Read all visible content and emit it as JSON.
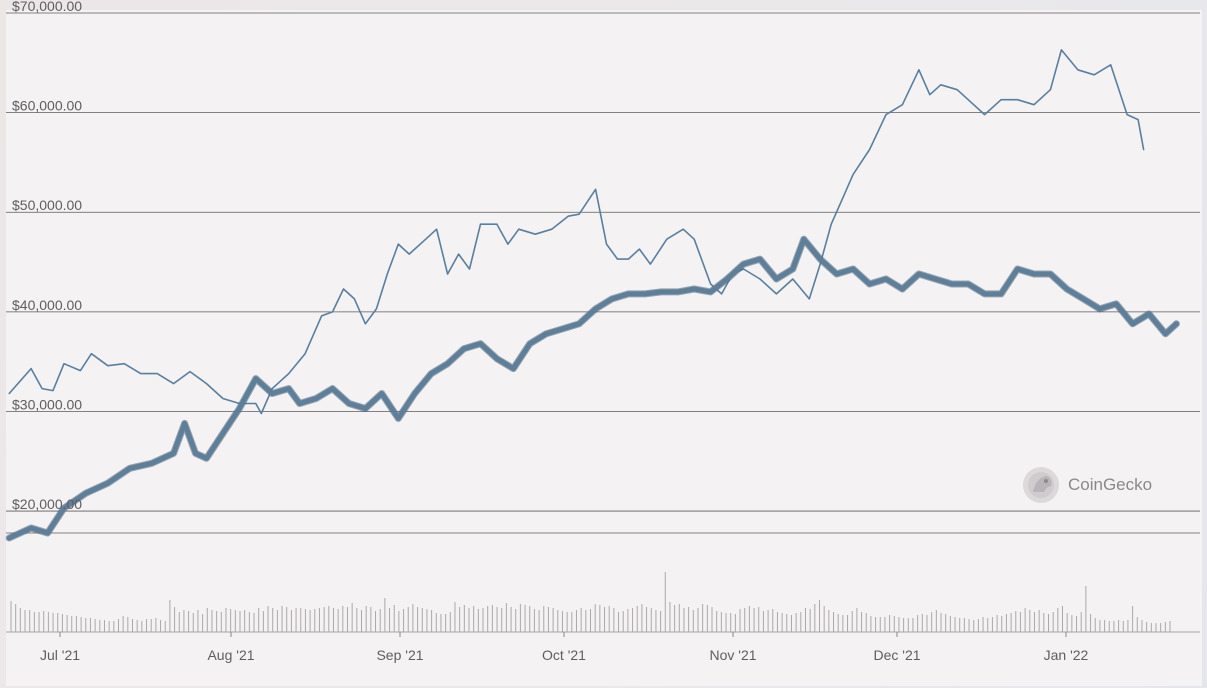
{
  "chart_data": {
    "type": "line",
    "title": "",
    "xlabel": "",
    "ylabel": "",
    "x_ticks": [
      "Jul '21",
      "Aug '21",
      "Sep '21",
      "Oct '21",
      "Nov '21",
      "Dec '21",
      "Jan '22"
    ],
    "y_ticks": [
      "$20,000.00",
      "$30,000.00",
      "$40,000.00",
      "$50,000.00",
      "$60,000.00",
      "$70,000.00"
    ],
    "ylim": [
      13000,
      72000
    ],
    "xlim": [
      "2021-06-21",
      "2022-01-28"
    ],
    "grid": true,
    "watermark": "CoinGecko",
    "series": [
      {
        "style": "thin",
        "color": "#5a7f9e",
        "points": [
          [
            "2021-06-21",
            32000
          ],
          [
            "2021-06-25",
            34500
          ],
          [
            "2021-06-27",
            32500
          ],
          [
            "2021-06-29",
            32300
          ],
          [
            "2021-07-01",
            35000
          ],
          [
            "2021-07-04",
            34300
          ],
          [
            "2021-07-06",
            36000
          ],
          [
            "2021-07-09",
            34800
          ],
          [
            "2021-07-12",
            35000
          ],
          [
            "2021-07-15",
            34000
          ],
          [
            "2021-07-18",
            34000
          ],
          [
            "2021-07-21",
            33000
          ],
          [
            "2021-07-24",
            34200
          ],
          [
            "2021-07-27",
            33000
          ],
          [
            "2021-07-30",
            31500
          ],
          [
            "2021-08-02",
            31000
          ],
          [
            "2021-08-05",
            31000
          ],
          [
            "2021-08-06",
            30000
          ],
          [
            "2021-08-08",
            32500
          ],
          [
            "2021-08-11",
            34000
          ],
          [
            "2021-08-14",
            36000
          ],
          [
            "2021-08-17",
            39800
          ],
          [
            "2021-08-19",
            40200
          ],
          [
            "2021-08-21",
            42500
          ],
          [
            "2021-08-23",
            41500
          ],
          [
            "2021-08-25",
            39000
          ],
          [
            "2021-08-27",
            40500
          ],
          [
            "2021-08-29",
            44000
          ],
          [
            "2021-08-31",
            47000
          ],
          [
            "2021-09-02",
            46000
          ],
          [
            "2021-09-05",
            47500
          ],
          [
            "2021-09-07",
            48500
          ],
          [
            "2021-09-09",
            44000
          ],
          [
            "2021-09-11",
            46000
          ],
          [
            "2021-09-13",
            44500
          ],
          [
            "2021-09-15",
            49000
          ],
          [
            "2021-09-18",
            49000
          ],
          [
            "2021-09-20",
            47000
          ],
          [
            "2021-09-22",
            48500
          ],
          [
            "2021-09-25",
            48000
          ],
          [
            "2021-09-28",
            48500
          ],
          [
            "2021-10-01",
            49800
          ],
          [
            "2021-10-03",
            50000
          ],
          [
            "2021-10-06",
            52500
          ],
          [
            "2021-10-08",
            47000
          ],
          [
            "2021-10-10",
            45500
          ],
          [
            "2021-10-12",
            45500
          ],
          [
            "2021-10-14",
            46500
          ],
          [
            "2021-10-16",
            45000
          ],
          [
            "2021-10-19",
            47500
          ],
          [
            "2021-10-22",
            48500
          ],
          [
            "2021-10-24",
            47500
          ],
          [
            "2021-10-27",
            43000
          ],
          [
            "2021-10-29",
            42000
          ],
          [
            "2021-10-31",
            44000
          ],
          [
            "2021-11-02",
            44500
          ],
          [
            "2021-11-05",
            43500
          ],
          [
            "2021-11-08",
            42000
          ],
          [
            "2021-11-11",
            43500
          ],
          [
            "2021-11-14",
            41500
          ],
          [
            "2021-11-16",
            45000
          ],
          [
            "2021-11-18",
            49000
          ],
          [
            "2021-11-20",
            51500
          ],
          [
            "2021-11-22",
            54000
          ],
          [
            "2021-11-25",
            56500
          ],
          [
            "2021-11-28",
            60000
          ],
          [
            "2021-12-01",
            61000
          ],
          [
            "2021-12-04",
            64500
          ],
          [
            "2021-12-06",
            62000
          ],
          [
            "2021-12-08",
            63000
          ],
          [
            "2021-12-11",
            62500
          ],
          [
            "2021-12-13",
            61500
          ],
          [
            "2021-12-16",
            60000
          ],
          [
            "2021-12-19",
            61500
          ],
          [
            "2021-12-22",
            61500
          ],
          [
            "2021-12-25",
            61000
          ],
          [
            "2021-12-28",
            62500
          ],
          [
            "2021-12-30",
            66500
          ],
          [
            "2022-01-02",
            64500
          ],
          [
            "2022-01-05",
            64000
          ],
          [
            "2022-01-08",
            65000
          ],
          [
            "2022-01-11",
            60000
          ],
          [
            "2022-01-13",
            59500
          ],
          [
            "2022-01-14",
            56500
          ]
        ]
      },
      {
        "style": "thick",
        "color": "#5f7f99",
        "points": [
          [
            "2021-06-21",
            17500
          ],
          [
            "2021-06-25",
            18500
          ],
          [
            "2021-06-28",
            18000
          ],
          [
            "2021-07-01",
            20500
          ],
          [
            "2021-07-05",
            22000
          ],
          [
            "2021-07-09",
            23000
          ],
          [
            "2021-07-13",
            24500
          ],
          [
            "2021-07-17",
            25000
          ],
          [
            "2021-07-21",
            26000
          ],
          [
            "2021-07-23",
            29000
          ],
          [
            "2021-07-25",
            26000
          ],
          [
            "2021-07-27",
            25500
          ],
          [
            "2021-07-30",
            28000
          ],
          [
            "2021-08-02",
            30500
          ],
          [
            "2021-08-05",
            33500
          ],
          [
            "2021-08-08",
            32000
          ],
          [
            "2021-08-11",
            32500
          ],
          [
            "2021-08-13",
            31000
          ],
          [
            "2021-08-16",
            31500
          ],
          [
            "2021-08-19",
            32500
          ],
          [
            "2021-08-22",
            31000
          ],
          [
            "2021-08-25",
            30500
          ],
          [
            "2021-08-28",
            32000
          ],
          [
            "2021-08-31",
            29500
          ],
          [
            "2021-09-03",
            32000
          ],
          [
            "2021-09-06",
            34000
          ],
          [
            "2021-09-09",
            35000
          ],
          [
            "2021-09-12",
            36500
          ],
          [
            "2021-09-15",
            37000
          ],
          [
            "2021-09-18",
            35500
          ],
          [
            "2021-09-21",
            34500
          ],
          [
            "2021-09-24",
            37000
          ],
          [
            "2021-09-27",
            38000
          ],
          [
            "2021-09-30",
            38500
          ],
          [
            "2021-10-03",
            39000
          ],
          [
            "2021-10-06",
            40500
          ],
          [
            "2021-10-09",
            41500
          ],
          [
            "2021-10-12",
            42000
          ],
          [
            "2021-10-15",
            42000
          ],
          [
            "2021-10-18",
            42200
          ],
          [
            "2021-10-21",
            42200
          ],
          [
            "2021-10-24",
            42500
          ],
          [
            "2021-10-27",
            42200
          ],
          [
            "2021-10-30",
            43500
          ],
          [
            "2021-11-02",
            45000
          ],
          [
            "2021-11-05",
            45500
          ],
          [
            "2021-11-08",
            43500
          ],
          [
            "2021-11-11",
            44500
          ],
          [
            "2021-11-13",
            47500
          ],
          [
            "2021-11-16",
            45500
          ],
          [
            "2021-11-19",
            44000
          ],
          [
            "2021-11-22",
            44500
          ],
          [
            "2021-11-25",
            43000
          ],
          [
            "2021-11-28",
            43500
          ],
          [
            "2021-12-01",
            42500
          ],
          [
            "2021-12-04",
            44000
          ],
          [
            "2021-12-07",
            43500
          ],
          [
            "2021-12-10",
            43000
          ],
          [
            "2021-12-13",
            43000
          ],
          [
            "2021-12-16",
            42000
          ],
          [
            "2021-12-19",
            42000
          ],
          [
            "2021-12-22",
            44500
          ],
          [
            "2021-12-25",
            44000
          ],
          [
            "2021-12-28",
            44000
          ],
          [
            "2021-12-31",
            42500
          ],
          [
            "2022-01-03",
            41500
          ],
          [
            "2022-01-06",
            40500
          ],
          [
            "2022-01-09",
            41000
          ],
          [
            "2022-01-12",
            39000
          ],
          [
            "2022-01-15",
            40000
          ],
          [
            "2022-01-18",
            38000
          ],
          [
            "2022-01-20",
            39000
          ]
        ]
      }
    ],
    "volume": [
      31,
      28,
      24,
      22,
      22,
      20,
      20,
      21,
      20,
      19,
      19,
      18,
      17,
      16,
      16,
      15,
      14,
      14,
      13,
      12,
      12,
      11,
      11,
      13,
      16,
      15,
      13,
      12,
      11,
      13,
      13,
      14,
      12,
      11,
      32,
      25,
      20,
      22,
      21,
      19,
      22,
      18,
      24,
      22,
      21,
      20,
      24,
      23,
      22,
      21,
      22,
      20,
      19,
      24,
      21,
      26,
      24,
      22,
      26,
      25,
      22,
      24,
      24,
      23,
      22,
      23,
      24,
      25,
      26,
      24,
      23,
      26,
      25,
      29,
      24,
      22,
      26,
      25,
      21,
      23,
      34,
      24,
      27,
      21,
      23,
      25,
      28,
      25,
      24,
      23,
      22,
      19,
      18,
      18,
      20,
      30,
      25,
      27,
      24,
      26,
      23,
      24,
      26,
      27,
      25,
      24,
      29,
      25,
      23,
      28,
      27,
      26,
      23,
      22,
      26,
      25,
      24,
      22,
      21,
      20,
      20,
      22,
      24,
      22,
      23,
      28,
      27,
      25,
      26,
      24,
      20,
      21,
      23,
      24,
      26,
      28,
      25,
      24,
      22,
      21,
      60,
      30,
      27,
      28,
      24,
      25,
      22,
      24,
      28,
      27,
      25,
      21,
      20,
      19,
      19,
      18,
      23,
      24,
      26,
      24,
      25,
      21,
      22,
      23,
      20,
      19,
      18,
      17,
      19,
      20,
      24,
      23,
      28,
      32,
      26,
      22,
      20,
      18,
      17,
      17,
      21,
      24,
      20,
      19,
      16,
      15,
      15,
      15,
      17,
      16,
      15,
      14,
      14,
      14,
      17,
      18,
      17,
      20,
      22,
      19,
      18,
      16,
      15,
      14,
      14,
      13,
      12,
      13,
      15,
      14,
      15,
      17,
      16,
      18,
      19,
      21,
      20,
      24,
      22,
      20,
      22,
      19,
      18,
      20,
      24,
      26,
      19,
      17,
      16,
      20,
      46,
      18,
      14,
      12,
      12,
      11,
      11,
      12,
      11,
      12,
      26,
      15,
      12,
      10,
      9,
      9,
      9,
      10,
      11
    ]
  },
  "watermark": {
    "label": "CoinGecko"
  }
}
